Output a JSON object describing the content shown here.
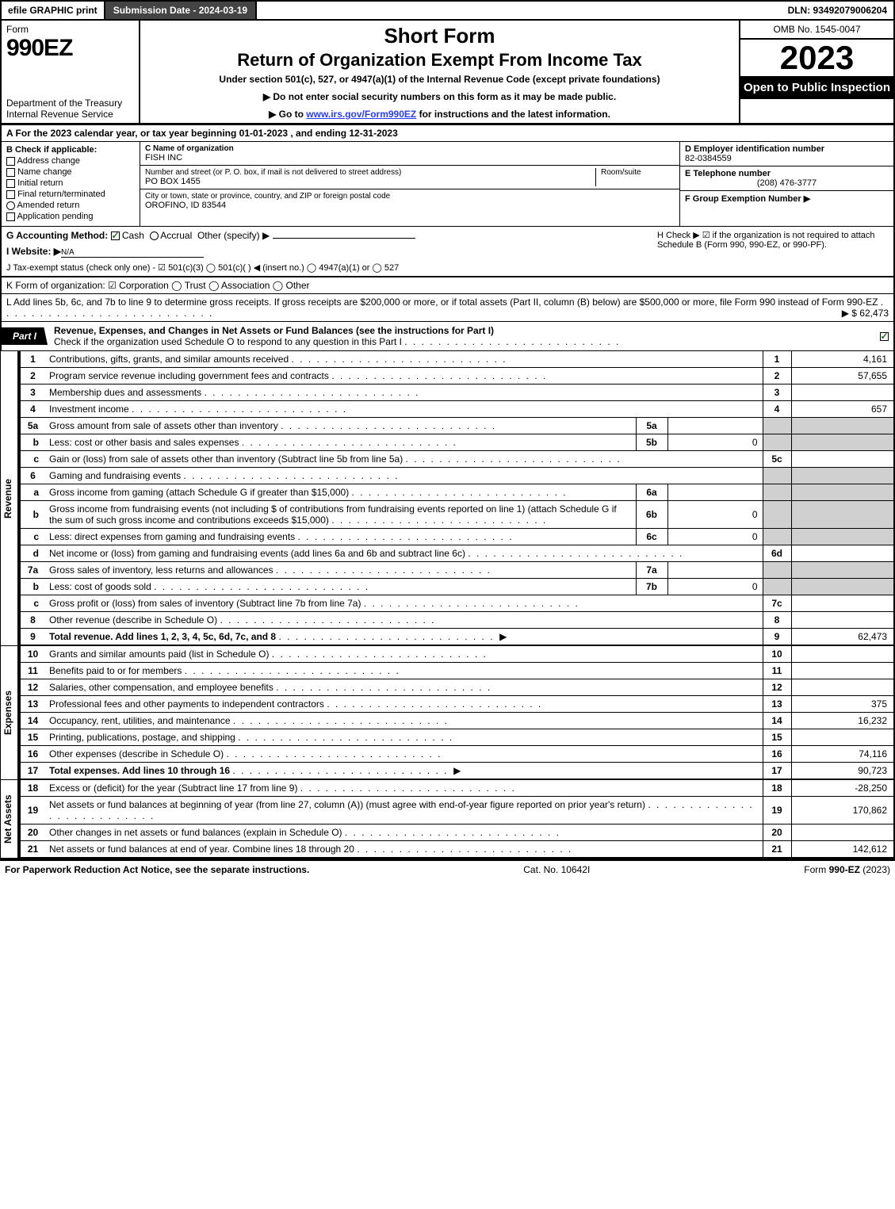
{
  "topbar": {
    "efile": "efile GRAPHIC print",
    "submission_label": "Submission Date - 2024-03-19",
    "dln": "DLN: 93492079006204"
  },
  "header": {
    "form_word": "Form",
    "form_number": "990EZ",
    "dept": "Department of the Treasury\nInternal Revenue Service",
    "title1": "Short Form",
    "title2": "Return of Organization Exempt From Income Tax",
    "subtitle": "Under section 501(c), 527, or 4947(a)(1) of the Internal Revenue Code (except private foundations)",
    "note1": "▶ Do not enter social security numbers on this form as it may be made public.",
    "note2_pre": "▶ Go to ",
    "note2_link": "www.irs.gov/Form990EZ",
    "note2_post": " for instructions and the latest information.",
    "omb": "OMB No. 1545-0047",
    "year": "2023",
    "inspect": "Open to Public Inspection"
  },
  "rowA": "A  For the 2023 calendar year, or tax year beginning 01-01-2023 , and ending 12-31-2023",
  "boxB": {
    "label": "B  Check if applicable:",
    "opts": [
      "Address change",
      "Name change",
      "Initial return",
      "Final return/terminated",
      "Amended return",
      "Application pending"
    ]
  },
  "boxC": {
    "name_lbl": "C Name of organization",
    "name": "FISH INC",
    "addr_lbl": "Number and street (or P. O. box, if mail is not delivered to street address)",
    "room_lbl": "Room/suite",
    "addr": "PO BOX 1455",
    "city_lbl": "City or town, state or province, country, and ZIP or foreign postal code",
    "city": "OROFINO, ID  83544"
  },
  "boxD": {
    "lbl": "D Employer identification number",
    "val": "82-0384559"
  },
  "boxE": {
    "lbl": "E Telephone number",
    "val": "(208) 476-3777"
  },
  "boxF": {
    "lbl": "F Group Exemption Number  ▶",
    "val": ""
  },
  "boxG": {
    "label": "G Accounting Method:",
    "cash": "Cash",
    "accrual": "Accrual",
    "other": "Other (specify) ▶"
  },
  "boxH": "H  Check ▶ ☑ if the organization is not required to attach Schedule B (Form 990, 990-EZ, or 990-PF).",
  "boxI": {
    "label": "I Website: ▶",
    "val": "N/A"
  },
  "boxJ": "J Tax-exempt status (check only one) - ☑ 501(c)(3)  ◯ 501(c)(  ) ◀ (insert no.)  ◯ 4947(a)(1) or  ◯ 527",
  "rowK": "K Form of organization:  ☑ Corporation  ◯ Trust  ◯ Association  ◯ Other",
  "rowL": {
    "text": "L Add lines 5b, 6c, and 7b to line 9 to determine gross receipts. If gross receipts are $200,000 or more, or if total assets (Part II, column (B) below) are $500,000 or more, file Form 990 instead of Form 990-EZ",
    "amount": "▶ $ 62,473"
  },
  "part1": {
    "tab": "Part I",
    "title": "Revenue, Expenses, and Changes in Net Assets or Fund Balances (see the instructions for Part I)",
    "subtitle": "Check if the organization used Schedule O to respond to any question in this Part I",
    "checked": true
  },
  "sections": {
    "revenue_label": "Revenue",
    "expenses_label": "Expenses",
    "netassets_label": "Net Assets"
  },
  "lines": [
    {
      "n": "1",
      "desc": "Contributions, gifts, grants, and similar amounts received",
      "rn": "1",
      "rv": "4,161"
    },
    {
      "n": "2",
      "desc": "Program service revenue including government fees and contracts",
      "rn": "2",
      "rv": "57,655"
    },
    {
      "n": "3",
      "desc": "Membership dues and assessments",
      "rn": "3",
      "rv": ""
    },
    {
      "n": "4",
      "desc": "Investment income",
      "rn": "4",
      "rv": "657"
    },
    {
      "n": "5a",
      "desc": "Gross amount from sale of assets other than inventory",
      "ib": "5a",
      "iv": "",
      "noRight": true
    },
    {
      "n": "b",
      "sub": true,
      "desc": "Less: cost or other basis and sales expenses",
      "ib": "5b",
      "iv": "0",
      "noRight": true
    },
    {
      "n": "c",
      "sub": true,
      "desc": "Gain or (loss) from sale of assets other than inventory (Subtract line 5b from line 5a)",
      "rn": "5c",
      "rv": ""
    },
    {
      "n": "6",
      "desc": "Gaming and fundraising events",
      "noRight": true,
      "greyRight": true
    },
    {
      "n": "a",
      "sub": true,
      "desc": "Gross income from gaming (attach Schedule G if greater than $15,000)",
      "ib": "6a",
      "iv": "",
      "noRight": true,
      "greyRight": true
    },
    {
      "n": "b",
      "sub": true,
      "desc": "Gross income from fundraising events (not including $              of contributions from fundraising events reported on line 1) (attach Schedule G if the sum of such gross income and contributions exceeds $15,000)",
      "ib": "6b",
      "iv": "0",
      "noRight": true,
      "greyRight": true
    },
    {
      "n": "c",
      "sub": true,
      "desc": "Less: direct expenses from gaming and fundraising events",
      "ib": "6c",
      "iv": "0",
      "noRight": true,
      "greyRight": true
    },
    {
      "n": "d",
      "sub": true,
      "desc": "Net income or (loss) from gaming and fundraising events (add lines 6a and 6b and subtract line 6c)",
      "rn": "6d",
      "rv": ""
    },
    {
      "n": "7a",
      "desc": "Gross sales of inventory, less returns and allowances",
      "ib": "7a",
      "iv": "",
      "noRight": true
    },
    {
      "n": "b",
      "sub": true,
      "desc": "Less: cost of goods sold",
      "ib": "7b",
      "iv": "0",
      "noRight": true
    },
    {
      "n": "c",
      "sub": true,
      "desc": "Gross profit or (loss) from sales of inventory (Subtract line 7b from line 7a)",
      "rn": "7c",
      "rv": ""
    },
    {
      "n": "8",
      "desc": "Other revenue (describe in Schedule O)",
      "rn": "8",
      "rv": ""
    },
    {
      "n": "9",
      "desc": "Total revenue. Add lines 1, 2, 3, 4, 5c, 6d, 7c, and 8",
      "bold": true,
      "arrow": true,
      "rn": "9",
      "rv": "62,473"
    }
  ],
  "exp_lines": [
    {
      "n": "10",
      "desc": "Grants and similar amounts paid (list in Schedule O)",
      "rn": "10",
      "rv": ""
    },
    {
      "n": "11",
      "desc": "Benefits paid to or for members",
      "rn": "11",
      "rv": ""
    },
    {
      "n": "12",
      "desc": "Salaries, other compensation, and employee benefits",
      "rn": "12",
      "rv": ""
    },
    {
      "n": "13",
      "desc": "Professional fees and other payments to independent contractors",
      "rn": "13",
      "rv": "375"
    },
    {
      "n": "14",
      "desc": "Occupancy, rent, utilities, and maintenance",
      "rn": "14",
      "rv": "16,232"
    },
    {
      "n": "15",
      "desc": "Printing, publications, postage, and shipping",
      "rn": "15",
      "rv": ""
    },
    {
      "n": "16",
      "desc": "Other expenses (describe in Schedule O)",
      "rn": "16",
      "rv": "74,116"
    },
    {
      "n": "17",
      "desc": "Total expenses. Add lines 10 through 16",
      "bold": true,
      "arrow": true,
      "rn": "17",
      "rv": "90,723"
    }
  ],
  "na_lines": [
    {
      "n": "18",
      "desc": "Excess or (deficit) for the year (Subtract line 17 from line 9)",
      "rn": "18",
      "rv": "-28,250"
    },
    {
      "n": "19",
      "desc": "Net assets or fund balances at beginning of year (from line 27, column (A)) (must agree with end-of-year figure reported on prior year's return)",
      "rn": "19",
      "rv": "170,862"
    },
    {
      "n": "20",
      "desc": "Other changes in net assets or fund balances (explain in Schedule O)",
      "rn": "20",
      "rv": ""
    },
    {
      "n": "21",
      "desc": "Net assets or fund balances at end of year. Combine lines 18 through 20",
      "rn": "21",
      "rv": "142,612"
    }
  ],
  "footer": {
    "left": "For Paperwork Reduction Act Notice, see the separate instructions.",
    "mid": "Cat. No. 10642I",
    "right": "Form 990-EZ (2023)"
  },
  "colors": {
    "black": "#000000",
    "grey": "#d0d0d0",
    "darkgrey": "#444444",
    "link": "#2a3cff"
  }
}
